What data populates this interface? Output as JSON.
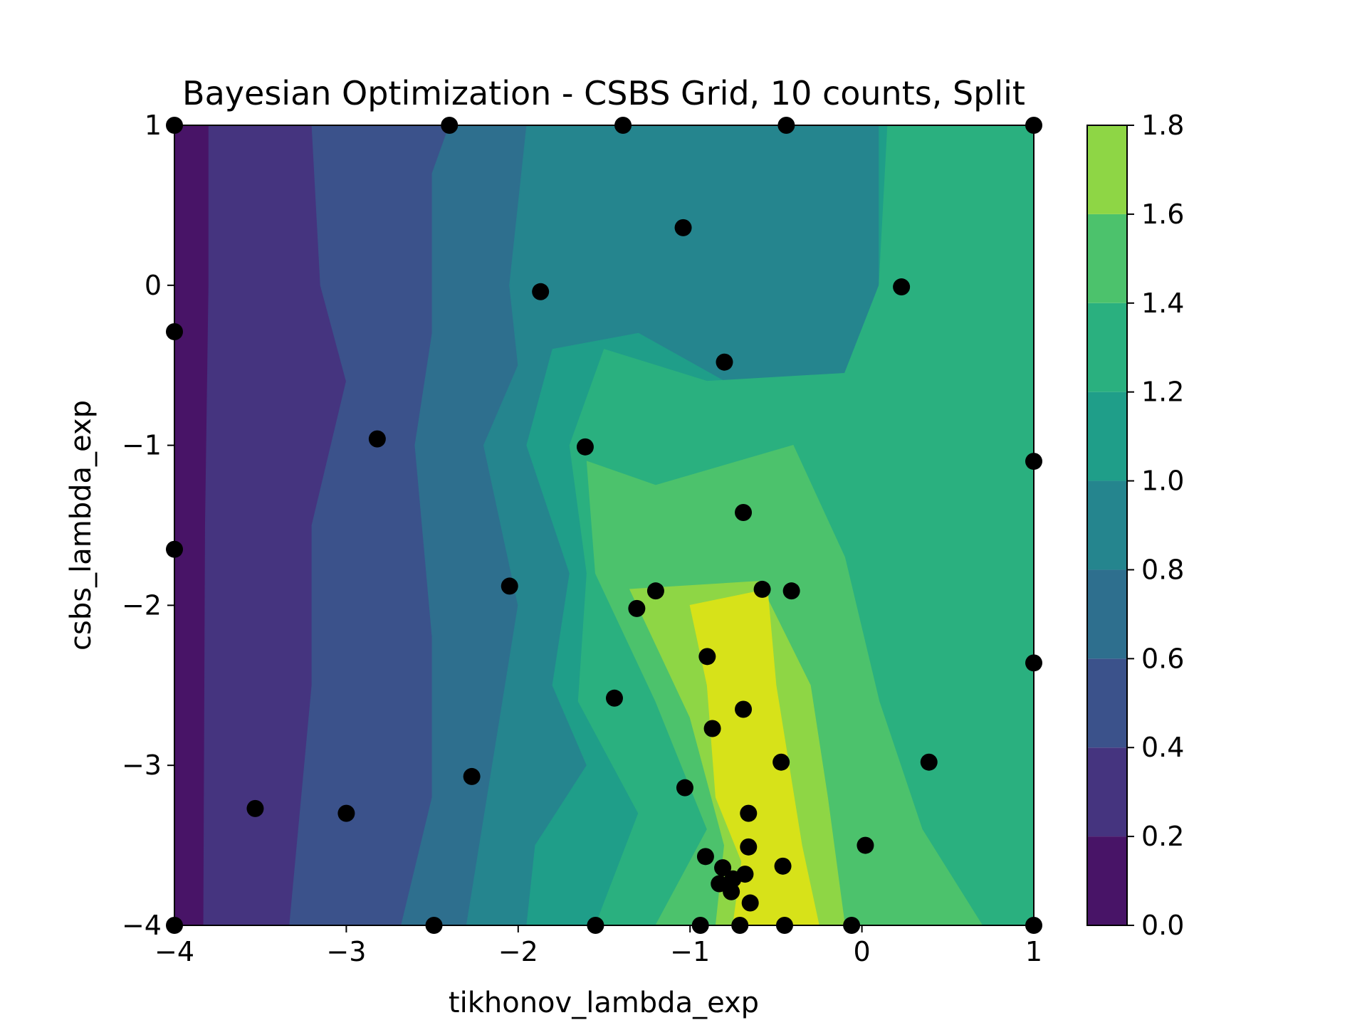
{
  "chart_data": {
    "type": "contour",
    "title": "Bayesian Optimization - CSBS Grid, 10 counts, Split",
    "xlabel": "tikhonov_lambda_exp",
    "ylabel": "csbs_lambda_exp",
    "xlim": [
      -4,
      1
    ],
    "ylim": [
      -4,
      1
    ],
    "xticks": [
      -4,
      -3,
      -2,
      -1,
      0,
      1
    ],
    "xtick_labels": [
      "−4",
      "−3",
      "−2",
      "−1",
      "0",
      "1"
    ],
    "yticks": [
      -4,
      -3,
      -2,
      -1,
      0,
      1
    ],
    "ytick_labels": [
      "−4",
      "−3",
      "−2",
      "−1",
      "0",
      "1"
    ],
    "grid": false,
    "colorbar": {
      "levels": [
        0.0,
        0.2,
        0.4,
        0.6,
        0.8,
        1.0,
        1.2,
        1.4,
        1.6,
        1.8
      ],
      "tick_labels": [
        "0.0",
        "0.2",
        "0.4",
        "0.6",
        "0.8",
        "1.0",
        "1.2",
        "1.4",
        "1.6",
        "1.8"
      ],
      "colors": [
        "#481467",
        "#45347f",
        "#3b528b",
        "#2e6f8e",
        "#25858e",
        "#1f9e89",
        "#2ab07f",
        "#4cc26c",
        "#8ed645",
        "#d7e219"
      ]
    },
    "contour_bands": [
      {
        "level": 1,
        "boundary": [
          [
            -3.83,
            -4
          ],
          [
            -3.82,
            -1.5
          ],
          [
            -3.8,
            0.0
          ],
          [
            -3.8,
            1
          ]
        ]
      },
      {
        "level": 2,
        "boundary": [
          [
            -3.33,
            -4
          ],
          [
            -3.2,
            -2.5
          ],
          [
            -3.2,
            -1.5
          ],
          [
            -3.0,
            -0.6
          ],
          [
            -3.15,
            0.0
          ],
          [
            -3.2,
            1
          ]
        ]
      },
      {
        "level": 3,
        "boundary": [
          [
            -2.68,
            -4
          ],
          [
            -2.5,
            -3.2
          ],
          [
            -2.5,
            -2.2
          ],
          [
            -2.6,
            -1.0
          ],
          [
            -2.5,
            -0.3
          ],
          [
            -2.5,
            0.7
          ],
          [
            -2.4,
            1
          ]
        ]
      },
      {
        "level": 4,
        "boundary": [
          [
            -2.3,
            -4
          ],
          [
            -2.15,
            -3.0
          ],
          [
            -2.0,
            -2.0
          ],
          [
            -2.2,
            -1.0
          ],
          [
            -2.0,
            -0.5
          ],
          [
            -2.05,
            0.0
          ],
          [
            -1.95,
            1
          ]
        ]
      },
      {
        "level": 5,
        "boundary": [
          [
            -1.95,
            -4
          ],
          [
            -1.9,
            -3.5
          ],
          [
            -1.6,
            -3.0
          ],
          [
            -1.8,
            -2.5
          ],
          [
            -1.7,
            -1.8
          ],
          [
            -1.95,
            -1.0
          ],
          [
            -1.8,
            -0.4
          ],
          [
            -1.3,
            -0.3
          ],
          [
            -0.8,
            -0.6
          ],
          [
            -0.1,
            -0.55
          ],
          [
            0.1,
            0.0
          ],
          [
            0.1,
            1
          ]
        ]
      },
      {
        "level": 6,
        "boundary": [
          [
            -1.55,
            -4
          ],
          [
            -1.3,
            -3.3
          ],
          [
            -1.65,
            -2.6
          ],
          [
            -1.6,
            -1.8
          ],
          [
            -1.7,
            -1.0
          ],
          [
            -1.5,
            -0.4
          ],
          [
            -0.9,
            -0.6
          ],
          [
            -0.1,
            -0.55
          ],
          [
            0.1,
            0.0
          ],
          [
            0.15,
            1
          ]
        ]
      },
      {
        "level": 7,
        "boundary": [
          [
            -1.2,
            -4
          ],
          [
            -0.9,
            -3.4
          ],
          [
            -1.2,
            -2.6
          ],
          [
            -1.55,
            -1.8
          ],
          [
            -1.6,
            -1.1
          ],
          [
            -1.2,
            -1.25
          ],
          [
            -0.4,
            -1.0
          ],
          [
            -0.1,
            -1.7
          ],
          [
            0.1,
            -2.6
          ],
          [
            0.35,
            -3.4
          ],
          [
            0.7,
            -4
          ]
        ]
      },
      {
        "level": 8,
        "boundary": [
          [
            -0.85,
            -4
          ],
          [
            -0.8,
            -3.5
          ],
          [
            -1.0,
            -2.7
          ],
          [
            -1.35,
            -1.9
          ],
          [
            -0.6,
            -1.85
          ],
          [
            -0.3,
            -2.5
          ],
          [
            -0.2,
            -3.2
          ],
          [
            -0.1,
            -4
          ]
        ]
      },
      {
        "level": 9,
        "boundary": [
          [
            -0.75,
            -4
          ],
          [
            -0.7,
            -3.6
          ],
          [
            -0.85,
            -3.2
          ],
          [
            -0.9,
            -2.5
          ],
          [
            -1.0,
            -2.0
          ],
          [
            -0.55,
            -1.9
          ],
          [
            -0.5,
            -2.5
          ],
          [
            -0.35,
            -3.5
          ],
          [
            -0.25,
            -4
          ]
        ]
      }
    ],
    "points": [
      {
        "x": -4.0,
        "y": 1.0
      },
      {
        "x": -2.4,
        "y": 1.0
      },
      {
        "x": -1.39,
        "y": 1.0
      },
      {
        "x": -0.44,
        "y": 1.0
      },
      {
        "x": 1.0,
        "y": 1.0
      },
      {
        "x": -1.04,
        "y": 0.36
      },
      {
        "x": -1.87,
        "y": -0.04
      },
      {
        "x": 0.23,
        "y": -0.01
      },
      {
        "x": -4.0,
        "y": -0.29
      },
      {
        "x": -0.8,
        "y": -0.48
      },
      {
        "x": -2.82,
        "y": -0.96
      },
      {
        "x": -1.61,
        "y": -1.01
      },
      {
        "x": 1.0,
        "y": -1.1
      },
      {
        "x": -0.69,
        "y": -1.42
      },
      {
        "x": -4.0,
        "y": -1.65
      },
      {
        "x": -2.05,
        "y": -1.88
      },
      {
        "x": -1.2,
        "y": -1.91
      },
      {
        "x": -0.58,
        "y": -1.9
      },
      {
        "x": -0.41,
        "y": -1.91
      },
      {
        "x": -1.31,
        "y": -2.02
      },
      {
        "x": -0.9,
        "y": -2.32
      },
      {
        "x": 1.0,
        "y": -2.36
      },
      {
        "x": -1.44,
        "y": -2.58
      },
      {
        "x": -0.69,
        "y": -2.65
      },
      {
        "x": -0.87,
        "y": -2.77
      },
      {
        "x": -0.47,
        "y": -2.98
      },
      {
        "x": 0.39,
        "y": -2.98
      },
      {
        "x": -2.27,
        "y": -3.07
      },
      {
        "x": -1.03,
        "y": -3.14
      },
      {
        "x": -3.53,
        "y": -3.27
      },
      {
        "x": -3.0,
        "y": -3.3
      },
      {
        "x": -0.66,
        "y": -3.3
      },
      {
        "x": 0.02,
        "y": -3.5
      },
      {
        "x": -0.66,
        "y": -3.51
      },
      {
        "x": -0.91,
        "y": -3.57
      },
      {
        "x": -0.81,
        "y": -3.64
      },
      {
        "x": -0.46,
        "y": -3.63
      },
      {
        "x": -0.68,
        "y": -3.68
      },
      {
        "x": -0.75,
        "y": -3.71
      },
      {
        "x": -0.83,
        "y": -3.74
      },
      {
        "x": -0.76,
        "y": -3.79
      },
      {
        "x": -0.65,
        "y": -3.86
      },
      {
        "x": -4.0,
        "y": -4.0
      },
      {
        "x": -2.49,
        "y": -4.0
      },
      {
        "x": -1.55,
        "y": -4.0
      },
      {
        "x": -0.94,
        "y": -4.0
      },
      {
        "x": -0.71,
        "y": -4.0
      },
      {
        "x": -0.45,
        "y": -4.0
      },
      {
        "x": -0.06,
        "y": -4.0
      },
      {
        "x": 1.0,
        "y": -4.0
      }
    ],
    "point_color": "#000000"
  }
}
